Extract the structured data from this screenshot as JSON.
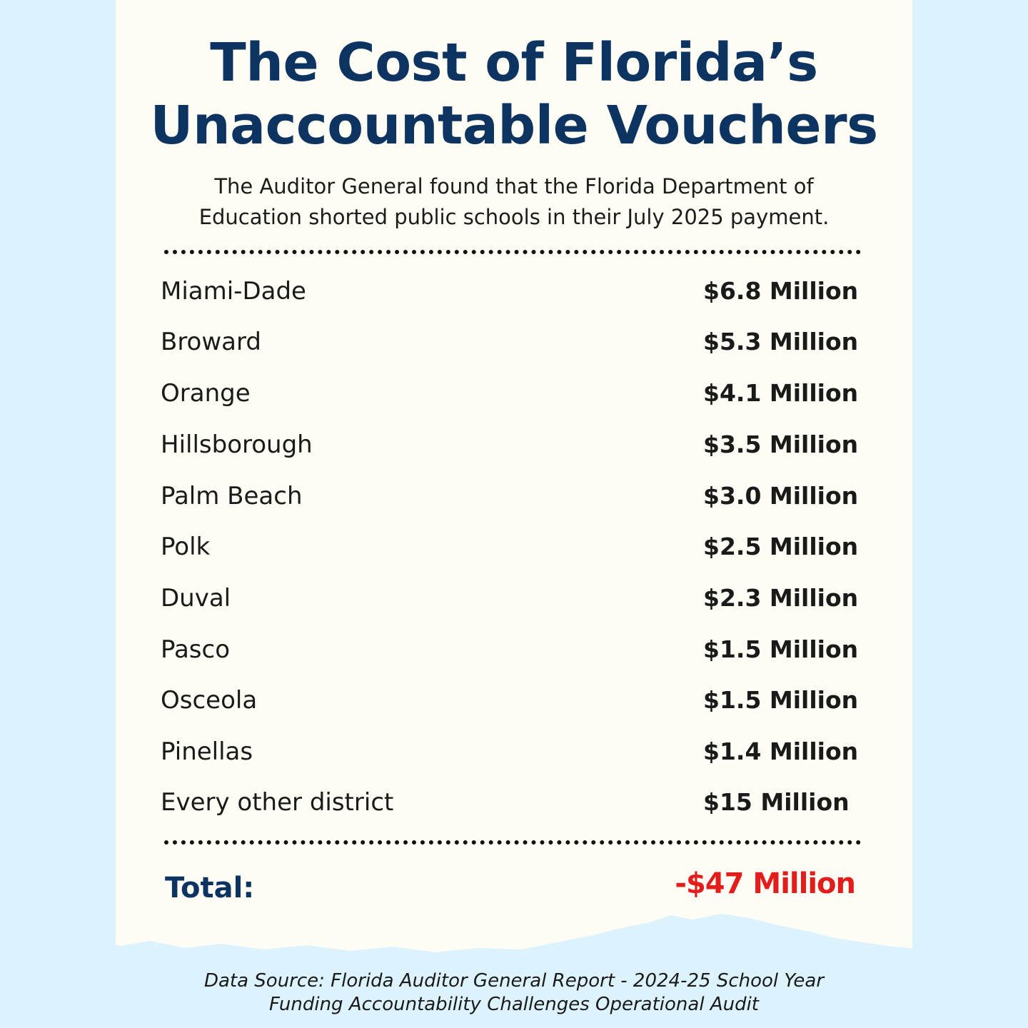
{
  "title_line1": "The Cost of Florida’s",
  "title_line2": "Unaccountable Vouchers",
  "subtitle_line1": "The Auditor General found that the Florida Department of",
  "subtitle_line2": "Education shorted public schools in their July 2025 payment.",
  "rows": [
    {
      "district": "Miami-Dade",
      "amount": "$6.8 Million"
    },
    {
      "district": "Broward",
      "amount": "$5.3 Million"
    },
    {
      "district": "Orange",
      "amount": "$4.1 Million"
    },
    {
      "district": "Hillsborough",
      "amount": "$3.5 Million"
    },
    {
      "district": "Palm Beach",
      "amount": "$3.0 Million"
    },
    {
      "district": "Polk",
      "amount": "$2.5 Million"
    },
    {
      "district": "Duval",
      "amount": "$2.3 Million"
    },
    {
      "district": "Pasco",
      "amount": "$1.5 Million"
    },
    {
      "district": "Osceola",
      "amount": "$1.5 Million"
    },
    {
      "district": "Pinellas",
      "amount": "$1.4 Million"
    },
    {
      "district": "Every other district",
      "amount": "$15 Million"
    }
  ],
  "total_label": "Total:",
  "total_value": "-$47 Million",
  "source_line1": "Data Source: Florida Auditor General Report - 2024-25 School Year",
  "source_line2": "Funding Accountability Challenges Operational Audit",
  "colors": {
    "background": "#dcf2fc",
    "paper": "#fdfdf5",
    "title": "#0d3461",
    "total_value": "#e31c1c"
  }
}
